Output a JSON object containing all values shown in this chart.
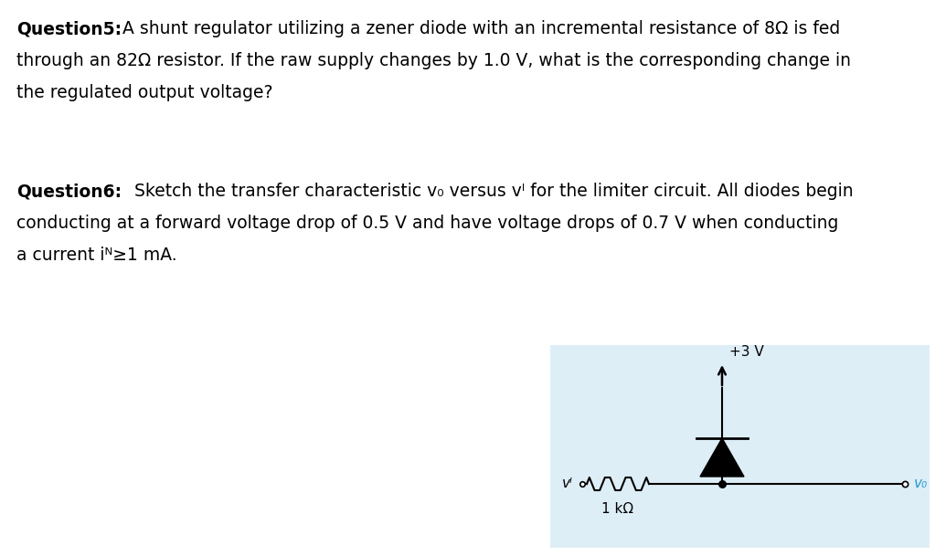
{
  "background_color": "#ffffff",
  "circuit_bg_color": "#deeef7",
  "text_color": "#000000",
  "circuit_label_vo_color": "#2299cc",
  "font_size_main": 13.5,
  "font_size_circuit": 11,
  "q5_bold": "Question5:",
  "q5_line2": "through an 82Ω resistor. If the raw supply changes by 1.0 V, what is the corresponding change in",
  "q5_line3": "the regulated output voltage?",
  "q6_bold": "Question6:",
  "q6_line1_rest": " Sketch the transfer characteristic v₀ versus vᴵ for the limiter circuit. All diodes begin",
  "q6_line2": "conducting at a forward voltage drop of 0.5 V and have voltage drops of 0.7 V when conducting",
  "q6_line3": "a current iᴺ≥1 mA.",
  "circuit_label_plus3v": "+3 V",
  "circuit_label_1kohm": "1 kΩ",
  "circuit_label_vi": "vᴵ",
  "circuit_label_vo": "v₀",
  "q5_line1_rest": " A shunt regulator utilizing a zener diode with an incremental resistance of 8Ω is fed"
}
